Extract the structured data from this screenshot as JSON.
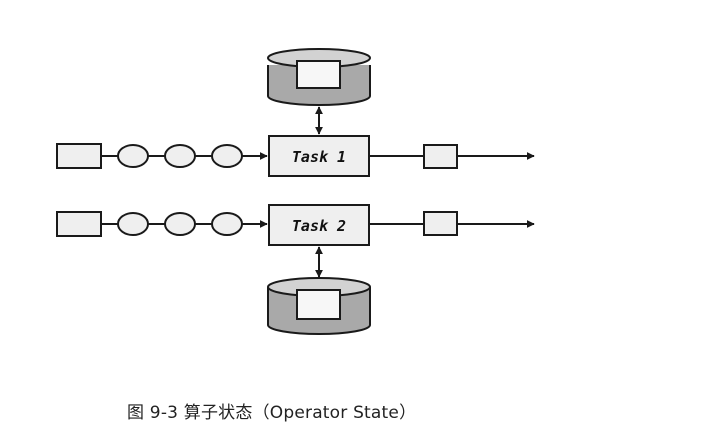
{
  "diagram": {
    "tasks": [
      {
        "label": "Task 1"
      },
      {
        "label": "Task 2"
      }
    ],
    "colors": {
      "stroke": "#1a1a1a",
      "box_fill": "#efefef",
      "store_body": "#a9a9a9",
      "store_top": "#d2d2d2",
      "store_inner": "#f7f7f7"
    }
  },
  "caption": {
    "text": "图 9-3  算子状态（Operator State）"
  }
}
